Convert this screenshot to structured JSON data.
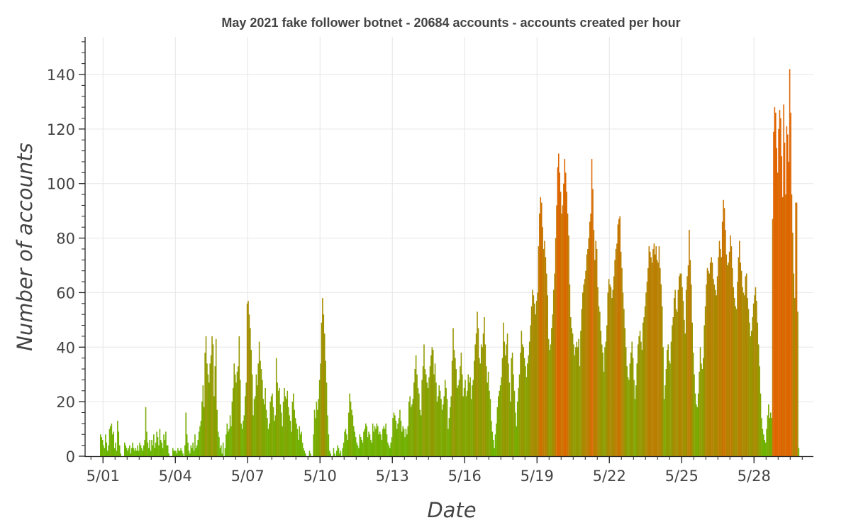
{
  "chart_data": {
    "type": "bar",
    "title": "May 2021 fake follower botnet - 20684 accounts - accounts created per hour",
    "xlabel": "Date",
    "ylabel": "Number of accounts",
    "x_start": "2021-04-30T21:00",
    "bin": "hour",
    "x_ticks": [
      "5/01",
      "5/04",
      "5/07",
      "5/10",
      "5/13",
      "5/16",
      "5/19",
      "5/22",
      "5/25",
      "5/28"
    ],
    "ylim": [
      0,
      153
    ],
    "y_ticks": [
      0,
      20,
      40,
      60,
      80,
      100,
      120,
      140
    ],
    "grid": true,
    "colors": {
      "low": "#66b800",
      "high": "#e06400",
      "axis": "#222222",
      "grid": "#e6e6e6",
      "text": "#444444"
    },
    "values": [
      8,
      7,
      6,
      4,
      3,
      8,
      5,
      2,
      4,
      10,
      11,
      12,
      8,
      9,
      3,
      5,
      2,
      13,
      9,
      4,
      1,
      0,
      0,
      0,
      5,
      4,
      3,
      2,
      3,
      4,
      1,
      3,
      5,
      3,
      2,
      3,
      2,
      4,
      2,
      5,
      4,
      3,
      2,
      4,
      6,
      18,
      9,
      5,
      3,
      6,
      2,
      6,
      4,
      8,
      3,
      5,
      9,
      7,
      4,
      10,
      6,
      5,
      3,
      8,
      6,
      9,
      4,
      4,
      1,
      0,
      0,
      0,
      3,
      2,
      2,
      2,
      1,
      3,
      2,
      2,
      3,
      2,
      1,
      0,
      4,
      16,
      8,
      5,
      2,
      1,
      4,
      3,
      5,
      2,
      8,
      3,
      4,
      6,
      9,
      11,
      13,
      20,
      26,
      18,
      38,
      44,
      34,
      30,
      27,
      34,
      37,
      44,
      41,
      22,
      33,
      43,
      17,
      9,
      7,
      3,
      4,
      1,
      5,
      0,
      3,
      8,
      12,
      9,
      10,
      15,
      11,
      20,
      25,
      34,
      30,
      27,
      31,
      33,
      44,
      28,
      12,
      10,
      13,
      15,
      22,
      27,
      56,
      57,
      52,
      47,
      39,
      30,
      15,
      21,
      22,
      30,
      26,
      34,
      42,
      35,
      32,
      28,
      21,
      19,
      25,
      17,
      14,
      10,
      12,
      20,
      22,
      23,
      18,
      13,
      15,
      36,
      27,
      24,
      25,
      19,
      16,
      11,
      20,
      25,
      22,
      21,
      24,
      18,
      15,
      13,
      9,
      20,
      23,
      17,
      14,
      12,
      10,
      6,
      11,
      8,
      9,
      5,
      3,
      2,
      1,
      0,
      0,
      0,
      2,
      1,
      0,
      0,
      8,
      17,
      14,
      20,
      17,
      21,
      28,
      34,
      49,
      58,
      52,
      45,
      35,
      27,
      15,
      8,
      2,
      1,
      0,
      0,
      3,
      1,
      0,
      2,
      4,
      3,
      1,
      2,
      0,
      3,
      5,
      9,
      10,
      8,
      6,
      16,
      23,
      20,
      17,
      15,
      11,
      9,
      7,
      5,
      4,
      3,
      8,
      7,
      6,
      5,
      9,
      10,
      12,
      11,
      7,
      9,
      8,
      6,
      5,
      12,
      9,
      11,
      10,
      12,
      11,
      8,
      9,
      8,
      6,
      10,
      11,
      10,
      12,
      8,
      5,
      4,
      3,
      5,
      7,
      14,
      16,
      15,
      13,
      10,
      12,
      14,
      17,
      13,
      9,
      11,
      10,
      7,
      10,
      8,
      11,
      20,
      22,
      18,
      19,
      21,
      27,
      32,
      37,
      30,
      25,
      23,
      17,
      15,
      28,
      33,
      41,
      32,
      30,
      27,
      25,
      29,
      33,
      37,
      40,
      39,
      30,
      34,
      27,
      20,
      22,
      26,
      24,
      21,
      17,
      19,
      22,
      28,
      25,
      21,
      10,
      14,
      18,
      22,
      35,
      47,
      39,
      36,
      32,
      25,
      26,
      28,
      33,
      38,
      30,
      22,
      25,
      28,
      22,
      24,
      30,
      27,
      29,
      21,
      26,
      28,
      35,
      41,
      45,
      53,
      47,
      36,
      34,
      41,
      40,
      45,
      51,
      41,
      33,
      27,
      31,
      24,
      21,
      13,
      9,
      6,
      3,
      8,
      12,
      18,
      22,
      24,
      26,
      29,
      36,
      49,
      42,
      37,
      41,
      45,
      34,
      27,
      20,
      36,
      38,
      30,
      24,
      16,
      11,
      20,
      25,
      30,
      38,
      46,
      41,
      40,
      36,
      33,
      29,
      34,
      37,
      42,
      48,
      55,
      61,
      59,
      56,
      52,
      57,
      60,
      77,
      89,
      95,
      93,
      84,
      76,
      79,
      73,
      67,
      59,
      43,
      39,
      41,
      47,
      52,
      61,
      67,
      80,
      92,
      106,
      111,
      104,
      97,
      89,
      92,
      100,
      109,
      104,
      97,
      89,
      81,
      63,
      51,
      47,
      45,
      41,
      37,
      40,
      42,
      40,
      43,
      33,
      46,
      54,
      60,
      63,
      65,
      68,
      74,
      76,
      80,
      86,
      89,
      109,
      98,
      83,
      72,
      79,
      76,
      62,
      55,
      53,
      46,
      41,
      38,
      31,
      40,
      42,
      48,
      60,
      65,
      63,
      62,
      58,
      61,
      66,
      72,
      76,
      78,
      85,
      87,
      88,
      75,
      69,
      60,
      54,
      47,
      40,
      33,
      29,
      28,
      34,
      38,
      42,
      36,
      28,
      21,
      26,
      34,
      41,
      44,
      46,
      42,
      39,
      49,
      51,
      55,
      60,
      64,
      69,
      77,
      75,
      73,
      71,
      76,
      78,
      74,
      77,
      72,
      71,
      77,
      69,
      63,
      55,
      40,
      21,
      26,
      32,
      39,
      41,
      35,
      34,
      42,
      48,
      51,
      58,
      61,
      54,
      53,
      61,
      66,
      67,
      67,
      62,
      57,
      50,
      45,
      61,
      66,
      70,
      83,
      72,
      63,
      49,
      38,
      30,
      23,
      19,
      18,
      23,
      31,
      40,
      34,
      32,
      36,
      48,
      55,
      63,
      69,
      68,
      67,
      71,
      73,
      71,
      65,
      63,
      61,
      59,
      66,
      73,
      79,
      76,
      73,
      86,
      94,
      91,
      83,
      74,
      70,
      71,
      75,
      81,
      77,
      69,
      62,
      58,
      55,
      54,
      64,
      73,
      79,
      71,
      68,
      62,
      60,
      59,
      66,
      67,
      58,
      54,
      49,
      44,
      46,
      51,
      56,
      59,
      62,
      57,
      49,
      41,
      33,
      23,
      14,
      10,
      8,
      6,
      5,
      10,
      15,
      19,
      14,
      16,
      14,
      87,
      119,
      128,
      126,
      113,
      104,
      120,
      127,
      124,
      110,
      95,
      129,
      115,
      96,
      121,
      118,
      108,
      142,
      126,
      96,
      82,
      67,
      58,
      93,
      93,
      53,
      3
    ]
  }
}
